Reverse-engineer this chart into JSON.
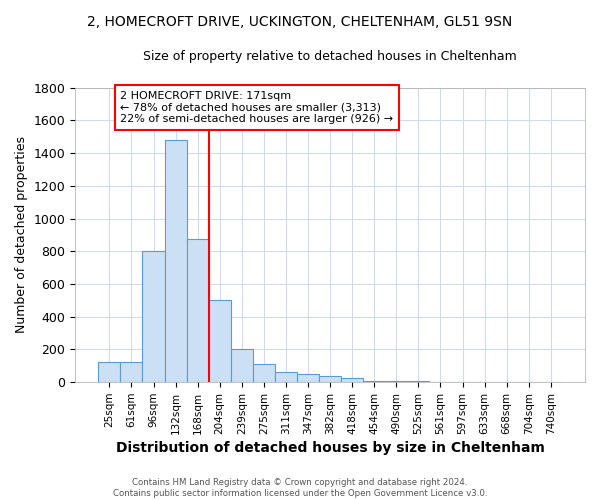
{
  "title_line1": "2, HOMECROFT DRIVE, UCKINGTON, CHELTENHAM, GL51 9SN",
  "title_line2": "Size of property relative to detached houses in Cheltenham",
  "xlabel": "Distribution of detached houses by size in Cheltenham",
  "ylabel": "Number of detached properties",
  "footnote": "Contains HM Land Registry data © Crown copyright and database right 2024.\nContains public sector information licensed under the Open Government Licence v3.0.",
  "categories": [
    "25sqm",
    "61sqm",
    "96sqm",
    "132sqm",
    "168sqm",
    "204sqm",
    "239sqm",
    "275sqm",
    "311sqm",
    "347sqm",
    "382sqm",
    "418sqm",
    "454sqm",
    "490sqm",
    "525sqm",
    "561sqm",
    "597sqm",
    "633sqm",
    "668sqm",
    "704sqm",
    "740sqm"
  ],
  "values": [
    125,
    125,
    800,
    1480,
    875,
    500,
    200,
    110,
    65,
    50,
    35,
    25,
    10,
    8,
    5,
    3,
    2,
    1,
    1,
    0,
    0
  ],
  "bar_color": "#cce0f5",
  "bar_edge_color": "#5b9bd5",
  "vline_index": 4,
  "vline_color": "red",
  "annotation_text": "2 HOMECROFT DRIVE: 171sqm\n← 78% of detached houses are smaller (3,313)\n22% of semi-detached houses are larger (926) →",
  "annotation_box_color": "white",
  "annotation_box_edge": "red",
  "ylim": [
    0,
    1800
  ],
  "yticks": [
    0,
    200,
    400,
    600,
    800,
    1000,
    1200,
    1400,
    1600,
    1800
  ],
  "bg_color": "#ffffff",
  "grid_color": "#d0dced",
  "title_fontsize": 10,
  "subtitle_fontsize": 9
}
